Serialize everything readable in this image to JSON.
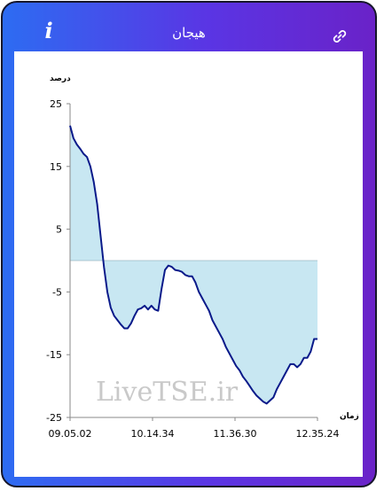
{
  "header": {
    "title": "هیجان",
    "info_icon": "info-icon",
    "link_icon": "link-icon"
  },
  "colors": {
    "gradient_start": "#2d6cf2",
    "gradient_end": "#6a22c8",
    "line": "#0a1a8a",
    "fill": "#c8e7f2"
  },
  "watermark": "LiveTSE.ir",
  "chart_data": {
    "type": "area",
    "ylabel": "درصد",
    "xlabel": "زمان",
    "ylim": [
      -25,
      25
    ],
    "yticks": [
      25,
      15,
      5,
      -5,
      -15,
      -25
    ],
    "xticks": [
      "09.05.02",
      "10.14.34",
      "11.36.30",
      "12.35.24"
    ],
    "baseline": 0,
    "series": [
      {
        "values": [
          21.5,
          19.5,
          18.5,
          17.8,
          17.0,
          16.5,
          15.0,
          12.5,
          9.0,
          4.0,
          -1.0,
          -5.0,
          -7.5,
          -8.8,
          -9.5,
          -10.2,
          -10.8,
          -10.8,
          -10.0,
          -8.8,
          -7.8,
          -7.6,
          -7.2,
          -7.8,
          -7.2,
          -7.8,
          -8.0,
          -4.5,
          -1.5,
          -0.8,
          -1.0,
          -1.5,
          -1.6,
          -1.8,
          -2.3,
          -2.5,
          -2.5,
          -3.5,
          -5.0,
          -6.0,
          -7.0,
          -8.0,
          -9.5,
          -10.5,
          -11.5,
          -12.5,
          -13.8,
          -14.8,
          -15.8,
          -16.8,
          -17.5,
          -18.5,
          -19.2,
          -20.0,
          -20.8,
          -21.5,
          -22.0,
          -22.5,
          -22.8,
          -22.3,
          -21.8,
          -20.5,
          -19.5,
          -18.5,
          -17.5,
          -16.5,
          -16.5,
          -17.0,
          -16.5,
          -15.5,
          -15.5,
          -14.5,
          -12.5,
          -12.5
        ]
      }
    ]
  }
}
